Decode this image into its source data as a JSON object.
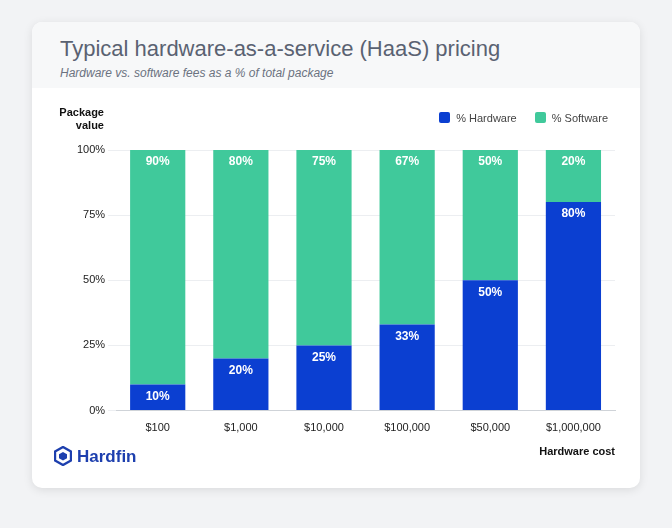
{
  "chart_data": {
    "type": "bar",
    "title": "Typical hardware-as-a-service (HaaS) pricing",
    "subtitle": "Hardware vs. software fees as a % of total package",
    "y_label": "Package value",
    "x_label": "Hardware cost",
    "brand": "Hardfin",
    "categories": [
      "$100",
      "$1,000",
      "$10,000",
      "$100,000",
      "$50,000",
      "$1,000,000"
    ],
    "series": [
      {
        "name": "% Hardware",
        "color": "#0b3fd1",
        "values": [
          10,
          20,
          25,
          33,
          50,
          80
        ],
        "value_labels": [
          "10%",
          "20%",
          "25%",
          "33%",
          "50%",
          "80%"
        ]
      },
      {
        "name": "% Software",
        "color": "#40c99b",
        "values": [
          90,
          80,
          75,
          67,
          50,
          20
        ],
        "value_labels": [
          "90%",
          "80%",
          "75%",
          "67%",
          "50%",
          "20%"
        ]
      }
    ],
    "stacked": true,
    "data_labels": true,
    "ylim": [
      0,
      100
    ],
    "yticks": [
      {
        "value": 0,
        "label": "0%"
      },
      {
        "value": 25,
        "label": "25%"
      },
      {
        "value": 50,
        "label": "50%"
      },
      {
        "value": 75,
        "label": "75%"
      },
      {
        "value": 100,
        "label": "100%"
      }
    ],
    "grid": true,
    "legend": "top-right"
  }
}
